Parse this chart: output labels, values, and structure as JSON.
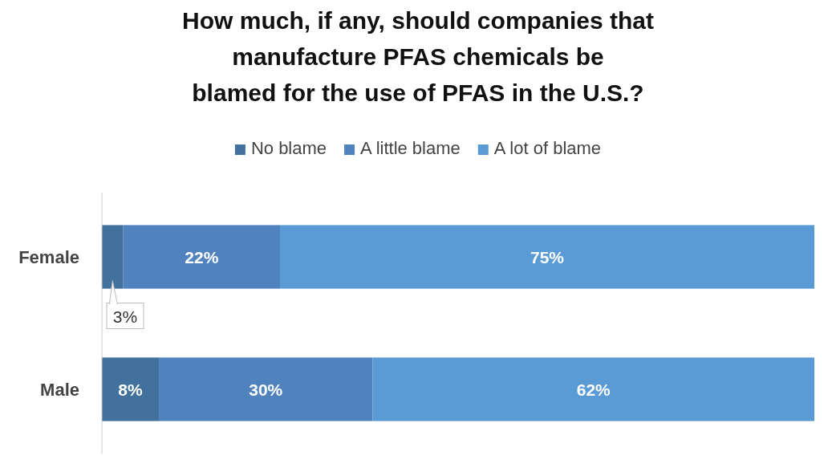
{
  "chart_data": {
    "type": "bar",
    "orientation": "horizontal",
    "stacked": true,
    "title": "How much, if any, should companies that\nmanufacture PFAS chemicals be\nblamed for the use of PFAS in the U.S.?",
    "categories": [
      "Female",
      "Male"
    ],
    "legend": "top",
    "series": [
      {
        "name": "No blame",
        "color": "#41719c",
        "values": [
          3,
          8
        ],
        "value_labels": [
          "3%",
          "8%"
        ]
      },
      {
        "name": "A little blame",
        "color": "#5083bd",
        "values": [
          22,
          30
        ],
        "value_labels": [
          "22%",
          "30%"
        ]
      },
      {
        "name": "A lot of blame",
        "color": "#5b9bd5",
        "values": [
          75,
          62
        ],
        "value_labels": [
          "75%",
          "62%"
        ]
      }
    ]
  }
}
